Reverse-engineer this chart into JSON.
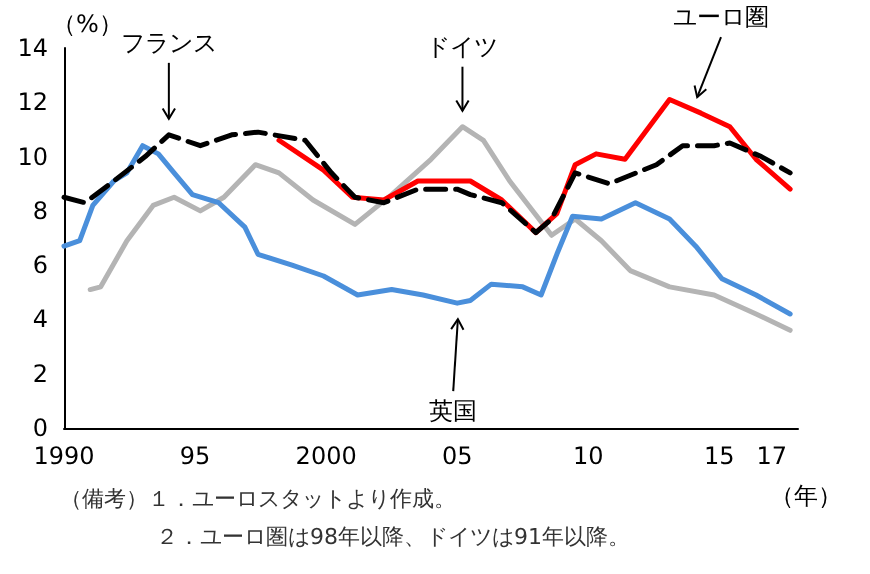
{
  "chart_data": {
    "type": "line",
    "xlabel": "（年）",
    "ylabel": "（%）",
    "xlim": [
      1990,
      2018
    ],
    "xticks": [
      1990,
      {
        "value": 1995,
        "label": "95"
      },
      2000,
      {
        "value": 2005,
        "label": "05"
      },
      {
        "value": 2010,
        "label": "10"
      },
      {
        "value": 2015,
        "label": "15"
      },
      {
        "value": 2017,
        "label": "17"
      }
    ],
    "ylim": [
      0,
      14
    ],
    "yticks": [
      0,
      2,
      4,
      6,
      8,
      10,
      12,
      14
    ],
    "grid": false,
    "legend": false,
    "marker": "none",
    "series": [
      {
        "name": "ドイツ",
        "color": "#b4b4b4",
        "line_style": "solid",
        "x": [
          1991.0,
          1991.4,
          1992.4,
          1993.4,
          1994.2,
          1995.2,
          1996.1,
          1997.3,
          1998.2,
          1999.5,
          2001.1,
          2002.5,
          2004.0,
          2005.2,
          2006.0,
          2007.0,
          2008.6,
          2009.5,
          2010.5,
          2011.6,
          2013.1,
          2014.8,
          2016.4,
          2017.7
        ],
        "values": [
          5.1,
          5.2,
          6.9,
          8.2,
          8.5,
          8.0,
          8.5,
          9.7,
          9.4,
          8.4,
          7.5,
          8.6,
          9.9,
          11.1,
          10.6,
          9.1,
          7.1,
          7.7,
          6.9,
          5.8,
          5.2,
          4.9,
          4.2,
          3.6
        ]
      },
      {
        "name": "英国",
        "color": "#4a8fdb",
        "line_style": "solid",
        "x": [
          1990.0,
          1990.6,
          1991.1,
          1991.9,
          1992.4,
          1993.0,
          1993.6,
          1994.2,
          1994.9,
          1995.9,
          1996.9,
          1997.4,
          1998.7,
          1999.9,
          2001.2,
          2002.5,
          2003.7,
          2005.0,
          2005.5,
          2006.3,
          2007.5,
          2008.2,
          2008.8,
          2009.4,
          2010.5,
          2011.8,
          2013.1,
          2014.1,
          2015.1,
          2016.4,
          2017.7
        ],
        "values": [
          6.7,
          6.9,
          8.2,
          9.1,
          9.4,
          10.4,
          10.1,
          9.4,
          8.6,
          8.3,
          7.4,
          6.4,
          6.0,
          5.6,
          4.9,
          5.1,
          4.9,
          4.6,
          4.7,
          5.3,
          5.2,
          4.9,
          6.4,
          7.8,
          7.7,
          8.3,
          7.7,
          6.7,
          5.5,
          4.9,
          4.2
        ]
      },
      {
        "name": "ユーロ圏",
        "color": "#ff0000",
        "line_style": "solid",
        "x": [
          1998.2,
          1999.9,
          2001.0,
          2002.2,
          2003.5,
          2005.0,
          2005.5,
          2006.7,
          2008.0,
          2008.8,
          2009.5,
          2010.3,
          2011.4,
          2013.1,
          2014.3,
          2015.4,
          2016.4,
          2017.7
        ],
        "values": [
          10.6,
          9.5,
          8.5,
          8.4,
          9.1,
          9.1,
          9.1,
          8.4,
          7.2,
          7.9,
          9.7,
          10.1,
          9.9,
          12.1,
          11.6,
          11.1,
          9.9,
          8.8
        ]
      },
      {
        "name": "フランス",
        "color": "#000000",
        "line_style": "dashed",
        "x": [
          1990.0,
          1990.8,
          1991.9,
          1993.1,
          1994.0,
          1995.2,
          1996.4,
          1997.4,
          1999.2,
          2000.2,
          2001.1,
          2002.2,
          2003.5,
          2005.0,
          2005.5,
          2006.7,
          2008.0,
          2008.6,
          2009.5,
          2010.8,
          2012.6,
          2013.6,
          2014.8,
          2015.4,
          2016.6,
          2017.7
        ],
        "values": [
          8.5,
          8.3,
          9.1,
          10.0,
          10.8,
          10.4,
          10.8,
          10.9,
          10.6,
          9.4,
          8.5,
          8.3,
          8.8,
          8.8,
          8.6,
          8.3,
          7.2,
          7.7,
          9.4,
          9.0,
          9.7,
          10.4,
          10.4,
          10.5,
          10.0,
          9.4
        ]
      }
    ],
    "annotations": [
      "（備考）１．ユーロスタットより作成。",
      "２．ユーロ圏は98年以降、ドイツは91年以降。"
    ]
  }
}
